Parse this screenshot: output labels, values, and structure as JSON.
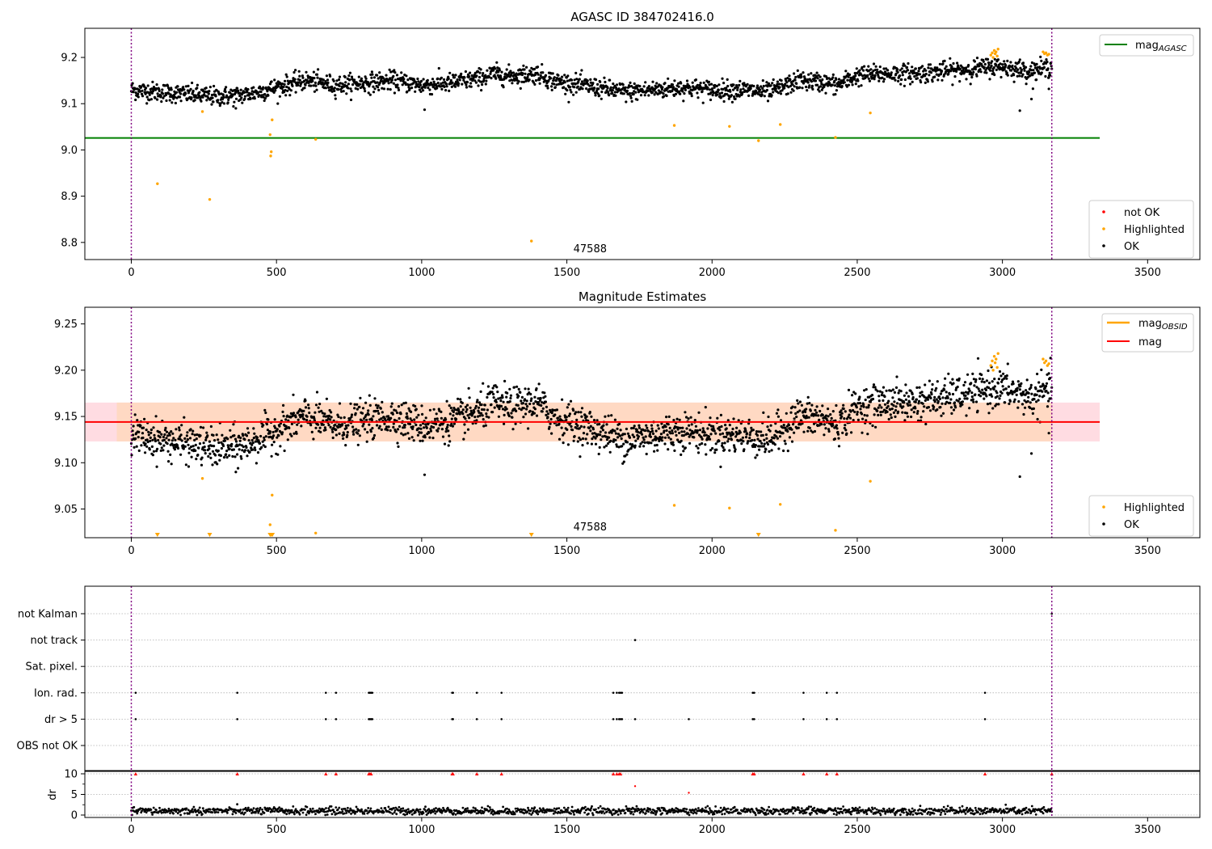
{
  "chart_data": [
    {
      "type": "scatter",
      "title": "AGASC ID 384702416.0",
      "xlim": [
        -160,
        3680
      ],
      "ylim": [
        8.763,
        9.263
      ],
      "x_ticks": [
        0,
        500,
        1000,
        1500,
        2000,
        2500,
        3000,
        3500
      ],
      "x_tick_labels": [
        "0",
        "500",
        "1000",
        "1500",
        "2000",
        "2500",
        "3000",
        "3500"
      ],
      "y_ticks": [
        8.8,
        8.9,
        9.0,
        9.1,
        9.2
      ],
      "y_tick_labels": [
        "8.8",
        "8.9",
        "9.0",
        "9.1",
        "9.2"
      ],
      "vlines": [
        0,
        3170
      ],
      "obs_marker": {
        "label": "47588",
        "x": 1580
      },
      "reference_line": {
        "name": "mag$_{AGASC}$",
        "label_base": "mag",
        "label_sub": "AGASC",
        "y": 9.026,
        "x_range": [
          -160,
          3335
        ],
        "color": "#008000"
      },
      "line_legend_position": "upper right",
      "points_legend_position": "lower right",
      "points_legend": [
        {
          "label": "not OK",
          "color": "#ff0000"
        },
        {
          "label": "Highlighted",
          "color": "#ffa500"
        },
        {
          "label": "OK",
          "color": "#000000"
        }
      ],
      "ok_series": {
        "name": "OK",
        "color": "#000000",
        "trend_x": [
          0,
          100,
          200,
          300,
          400,
          500,
          600,
          700,
          800,
          900,
          1000,
          1100,
          1200,
          1250,
          1300,
          1400,
          1450,
          1500,
          1600,
          1700,
          1800,
          1900,
          2000,
          2100,
          2200,
          2300,
          2400,
          2430,
          2500,
          2600,
          2700,
          2800,
          2900,
          2960,
          3000,
          3050,
          3100,
          3170
        ],
        "trend_y": [
          9.13,
          9.125,
          9.12,
          9.115,
          9.12,
          9.135,
          9.15,
          9.14,
          9.145,
          9.15,
          9.14,
          9.145,
          9.155,
          9.165,
          9.16,
          9.165,
          9.15,
          9.145,
          9.135,
          9.125,
          9.13,
          9.135,
          9.13,
          9.13,
          9.125,
          9.15,
          9.145,
          9.14,
          9.16,
          9.165,
          9.165,
          9.17,
          9.175,
          9.18,
          9.18,
          9.175,
          9.17,
          9.18
        ],
        "count": 2200,
        "spread": 0.012,
        "outliers": [
          [
            1010,
            9.087
          ],
          [
            3060,
            9.085
          ],
          [
            3100,
            9.11
          ],
          [
            3160,
            9.132
          ],
          [
            360,
            9.09
          ]
        ]
      },
      "highlighted_series": {
        "name": "Highlighted",
        "color": "#ffa500",
        "points": [
          [
            90,
            8.927
          ],
          [
            245,
            9.083
          ],
          [
            270,
            8.893
          ],
          [
            478,
            9.033
          ],
          [
            480,
            8.987
          ],
          [
            482,
            8.996
          ],
          [
            485,
            9.065
          ],
          [
            635,
            9.023
          ],
          [
            1378,
            8.803
          ],
          [
            1870,
            9.053
          ],
          [
            2060,
            9.051
          ],
          [
            2160,
            9.02
          ],
          [
            2235,
            9.055
          ],
          [
            2425,
            9.027
          ],
          [
            2545,
            9.08
          ],
          [
            2960,
            9.205
          ],
          [
            2965,
            9.21
          ],
          [
            2968,
            9.2
          ],
          [
            2972,
            9.215
          ],
          [
            2975,
            9.208
          ],
          [
            2978,
            9.212
          ],
          [
            2982,
            9.203
          ],
          [
            2985,
            9.218
          ],
          [
            3140,
            9.212
          ],
          [
            3145,
            9.208
          ],
          [
            3150,
            9.21
          ],
          [
            3155,
            9.205
          ],
          [
            3160,
            9.207
          ]
        ]
      }
    },
    {
      "type": "scatter",
      "title": "Magnitude Estimates",
      "xlim": [
        -160,
        3680
      ],
      "ylim": [
        9.019,
        9.268
      ],
      "x_ticks": [
        0,
        500,
        1000,
        1500,
        2000,
        2500,
        3000,
        3500
      ],
      "x_tick_labels": [
        "0",
        "500",
        "1000",
        "1500",
        "2000",
        "2500",
        "3000",
        "3500"
      ],
      "y_ticks": [
        9.05,
        9.1,
        9.15,
        9.2,
        9.25
      ],
      "y_tick_labels": [
        "9.05",
        "9.10",
        "9.15",
        "9.20",
        "9.25"
      ],
      "vlines": [
        0,
        3170
      ],
      "obs_marker": {
        "label": "47588",
        "x": 1580
      },
      "mag_line": {
        "name": "mag",
        "y": 9.144,
        "x_range": [
          -160,
          3335
        ],
        "color": "#ff0000"
      },
      "mag_obsid_line": {
        "name": "mag$_{OBSID}$",
        "label_base": "mag",
        "label_sub": "OBSID",
        "color": "#ffa500",
        "segments": [
          {
            "x_range": [
              -160,
              3335
            ],
            "y_range": [
              9.123,
              9.165
            ]
          }
        ]
      },
      "line_legend_position": "upper right",
      "points_legend_position": "lower right",
      "band": {
        "y_range": [
          9.123,
          9.165
        ],
        "x_range": [
          -160,
          3335
        ],
        "outer_color": "#ffc0cb",
        "inner_color": "#ffd8c0",
        "inner_x_range": [
          -50,
          3170
        ]
      },
      "points_legend": [
        {
          "label": "Highlighted",
          "color": "#ffa500"
        },
        {
          "label": "OK",
          "color": "#000000"
        }
      ],
      "ok_series": {
        "name": "OK",
        "color": "#000000",
        "trend_x": [
          0,
          100,
          200,
          300,
          400,
          500,
          600,
          700,
          800,
          900,
          1000,
          1100,
          1200,
          1250,
          1300,
          1400,
          1450,
          1500,
          1600,
          1700,
          1800,
          1900,
          2000,
          2100,
          2200,
          2300,
          2400,
          2430,
          2500,
          2600,
          2700,
          2800,
          2900,
          2960,
          3000,
          3050,
          3100,
          3170
        ],
        "trend_y": [
          9.13,
          9.125,
          9.12,
          9.115,
          9.12,
          9.135,
          9.15,
          9.14,
          9.145,
          9.15,
          9.14,
          9.145,
          9.155,
          9.165,
          9.16,
          9.165,
          9.15,
          9.145,
          9.135,
          9.125,
          9.13,
          9.135,
          9.13,
          9.13,
          9.125,
          9.15,
          9.145,
          9.14,
          9.16,
          9.165,
          9.165,
          9.17,
          9.175,
          9.18,
          9.18,
          9.175,
          9.17,
          9.18
        ],
        "count": 2200,
        "spread": 0.012,
        "outliers": [
          [
            1010,
            9.087
          ],
          [
            3060,
            9.085
          ],
          [
            3100,
            9.11
          ],
          [
            3160,
            9.132
          ],
          [
            360,
            9.09
          ]
        ]
      },
      "highlighted_series": {
        "name": "Highlighted",
        "color": "#ffa500",
        "points": [
          [
            245,
            9.083
          ],
          [
            478,
            9.033
          ],
          [
            485,
            9.065
          ],
          [
            635,
            9.024
          ],
          [
            1870,
            9.054
          ],
          [
            2060,
            9.051
          ],
          [
            2235,
            9.055
          ],
          [
            2425,
            9.027
          ],
          [
            2545,
            9.08
          ],
          [
            2960,
            9.205
          ],
          [
            2965,
            9.21
          ],
          [
            2968,
            9.2
          ],
          [
            2972,
            9.215
          ],
          [
            2975,
            9.208
          ],
          [
            2978,
            9.212
          ],
          [
            2982,
            9.203
          ],
          [
            2985,
            9.218
          ],
          [
            3140,
            9.212
          ],
          [
            3145,
            9.208
          ],
          [
            3150,
            9.21
          ],
          [
            3155,
            9.205
          ],
          [
            3160,
            9.207
          ]
        ],
        "below_axis_x": [
          90,
          270,
          478,
          482,
          486,
          1378,
          2160
        ]
      }
    },
    {
      "type": "scatter",
      "title": "",
      "xlim": [
        -160,
        3680
      ],
      "categories": [
        "not Kalman",
        "not track",
        "Sat. pixel.",
        "Ion. rad.",
        "dr > 5",
        "OBS not OK"
      ],
      "vlines": [
        0,
        3170
      ],
      "flag_points": {
        "not Kalman": [
          3170
        ],
        "not track": [
          1735
        ],
        "Sat. pixel.": [],
        "Ion. rad.": [
          15,
          365,
          670,
          705,
          818,
          822,
          826,
          830,
          1105,
          1108,
          1190,
          1275,
          1660,
          1672,
          1680,
          1685,
          1690,
          2140,
          2145,
          2315,
          2395,
          2430,
          2940
        ],
        "dr > 5": [
          15,
          365,
          670,
          705,
          818,
          822,
          826,
          830,
          1105,
          1108,
          1190,
          1275,
          1660,
          1672,
          1680,
          1685,
          1690,
          1735,
          1920,
          2140,
          2145,
          2315,
          2395,
          2430,
          2940
        ],
        "OBS not OK": []
      }
    },
    {
      "type": "scatter",
      "title": "",
      "ylabel": "dr",
      "xlim": [
        -160,
        3680
      ],
      "ylim": [
        -0.5,
        10.5
      ],
      "x_ticks": [
        0,
        500,
        1000,
        1500,
        2000,
        2500,
        3000,
        3500
      ],
      "x_tick_labels": [
        "0",
        "500",
        "1000",
        "1500",
        "2000",
        "2500",
        "3000",
        "3500"
      ],
      "y_ticks": [
        0,
        5,
        10
      ],
      "y_tick_labels": [
        "0",
        "5",
        "10"
      ],
      "vlines": [
        0,
        3170
      ],
      "dr_series": {
        "name": "dr",
        "color": "#000000",
        "count": 1400,
        "mean": 1.0,
        "spread": 0.45
      },
      "capped_points": {
        "y": 10,
        "x": [
          15,
          365,
          670,
          705,
          818,
          822,
          826,
          1105,
          1108,
          1190,
          1275,
          1660,
          1672,
          1680,
          1685,
          2140,
          2145,
          2315,
          2395,
          2430,
          2940,
          3170
        ],
        "color": "#ff0000"
      },
      "red_points": [
        [
          1735,
          7.0
        ],
        [
          1920,
          5.4
        ]
      ]
    }
  ]
}
